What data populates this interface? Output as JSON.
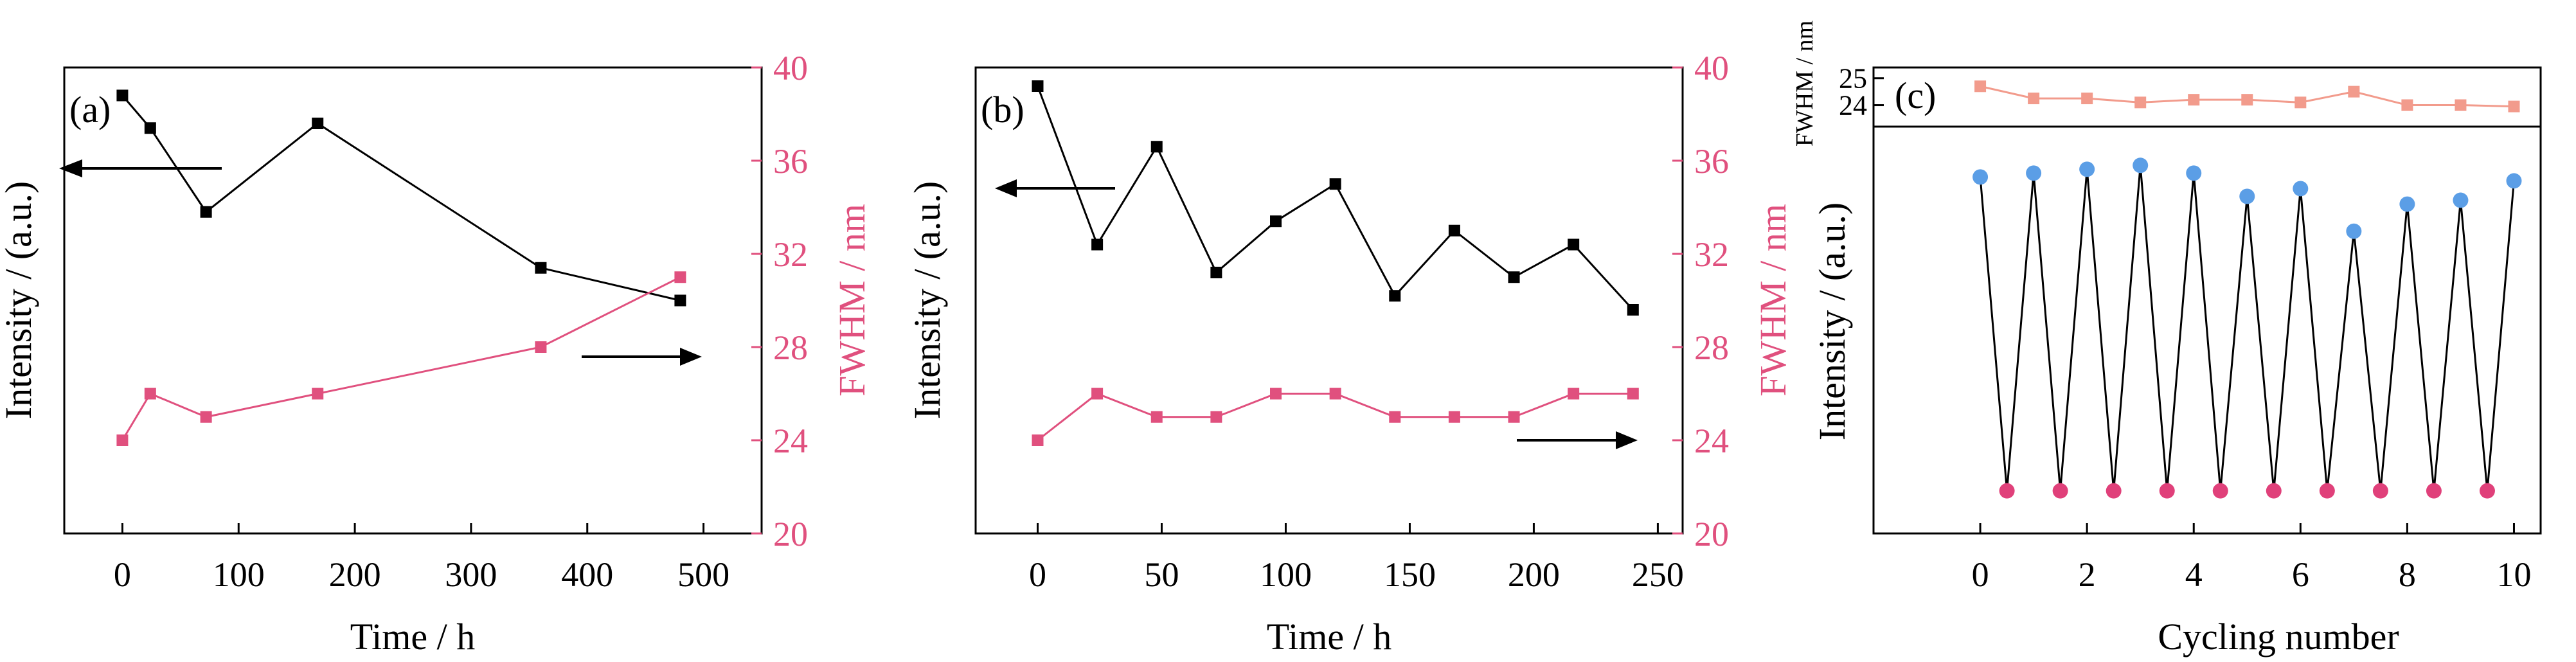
{
  "colors": {
    "intensity": "#000000",
    "fwhm": "#e0507e",
    "fwhm_light": "#f29b8c",
    "peak_dot": "#5b9ee6",
    "valley_dot": "#e0407a"
  },
  "chart_data": [
    {
      "panel": "(a)",
      "type": "line",
      "xlabel": "Time / h",
      "xlim": [
        -50,
        550
      ],
      "xticks": [
        0,
        100,
        200,
        300,
        400,
        500
      ],
      "ylabel_left": "Intensity / (a.u.)",
      "ylabel_right": "FWHM / nm",
      "ylim_right": [
        20,
        40
      ],
      "yticks_right": [
        20,
        24,
        28,
        32,
        36,
        40
      ],
      "series": [
        {
          "quantity": "intensity",
          "axis": "left",
          "marker": "square",
          "x": [
            0,
            24,
            72,
            168,
            360,
            480
          ],
          "y": [
            39.4,
            38.7,
            36.9,
            38.8,
            35.7,
            35.0
          ]
        },
        {
          "quantity": "fwhm",
          "axis": "right",
          "marker": "square",
          "x": [
            0,
            24,
            72,
            168,
            360,
            480
          ],
          "y": [
            24,
            26,
            25,
            26,
            28,
            31
          ]
        }
      ]
    },
    {
      "panel": "(b)",
      "type": "line",
      "xlabel": "Time / h",
      "xlim": [
        -25,
        260
      ],
      "xticks": [
        0,
        50,
        100,
        150,
        200,
        250
      ],
      "ylabel_left": "Intensity / (a.u.)",
      "ylabel_right": "FWHM / nm",
      "ylim_right": [
        20,
        40
      ],
      "yticks_right": [
        20,
        24,
        28,
        32,
        36,
        40
      ],
      "series": [
        {
          "quantity": "intensity",
          "axis": "left",
          "marker": "square",
          "x": [
            0,
            24,
            48,
            72,
            96,
            120,
            144,
            168,
            192,
            216,
            240
          ],
          "y": [
            39.6,
            36.2,
            38.3,
            35.6,
            36.7,
            37.5,
            35.1,
            36.5,
            35.5,
            36.2,
            34.8
          ]
        },
        {
          "quantity": "fwhm",
          "axis": "right",
          "marker": "square",
          "x": [
            0,
            24,
            48,
            72,
            96,
            120,
            144,
            168,
            192,
            216,
            240
          ],
          "y": [
            24,
            26,
            25,
            25,
            26,
            26,
            25,
            25,
            25,
            26,
            26
          ]
        }
      ]
    },
    {
      "panel": "(c)",
      "type": "line",
      "xlabel": "Cycling number",
      "xlim": [
        -2,
        10.5
      ],
      "xticks": [
        0,
        2,
        4,
        6,
        8,
        10
      ],
      "ylabel_bottom": "Intensity / (a.u.)",
      "ylabel_top": "FWHM / nm",
      "ylim_top": [
        23.2,
        25.4
      ],
      "yticks_top": [
        24,
        25
      ],
      "ylim_bottom": [
        0,
        1.05
      ],
      "series": [
        {
          "quantity": "fwhm",
          "marker": "square",
          "x": [
            0,
            1,
            2,
            3,
            4,
            5,
            6,
            7,
            8,
            9,
            10
          ],
          "y": [
            24.7,
            24.25,
            24.25,
            24.1,
            24.2,
            24.2,
            24.1,
            24.5,
            24.0,
            24.0,
            23.95
          ]
        },
        {
          "quantity": "intensity",
          "marker": "circle",
          "x": [
            0,
            0.5,
            1,
            1.5,
            2,
            2.5,
            3,
            3.5,
            4,
            4.5,
            5,
            5.5,
            6,
            6.5,
            7,
            7.5,
            8,
            8.5,
            9,
            9.5,
            10
          ],
          "y": [
            0.92,
            0.11,
            0.93,
            0.11,
            0.94,
            0.11,
            0.95,
            0.11,
            0.93,
            0.11,
            0.87,
            0.11,
            0.89,
            0.11,
            0.78,
            0.11,
            0.85,
            0.11,
            0.86,
            0.11,
            0.91
          ]
        }
      ]
    }
  ]
}
